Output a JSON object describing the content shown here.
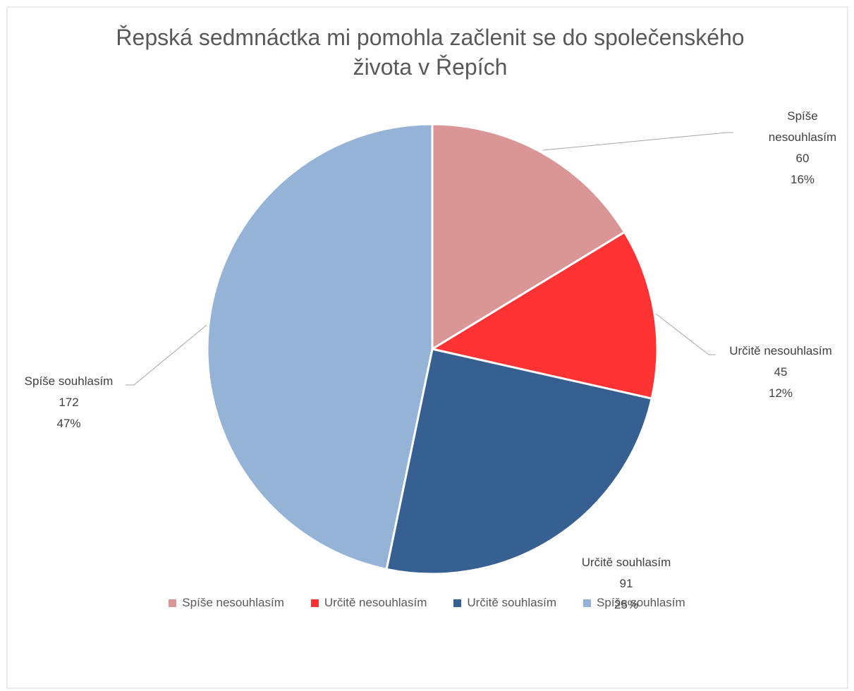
{
  "chart_data": {
    "type": "pie",
    "title": "Řepská sedmnáctka mi pomohla začlenit se do společenského života v Řepích",
    "categories": [
      "Spíše nesouhlasím",
      "Určitě nesouhlasím",
      "Určitě souhlasím",
      "Spíše souhlasím"
    ],
    "values": [
      60,
      45,
      91,
      172
    ],
    "percent_labels": [
      "16%",
      "12%",
      "25%",
      "47%"
    ],
    "colors": [
      "#d99694",
      "#ff3333",
      "#376092",
      "#95b3d7"
    ],
    "legend": "bottom"
  }
}
